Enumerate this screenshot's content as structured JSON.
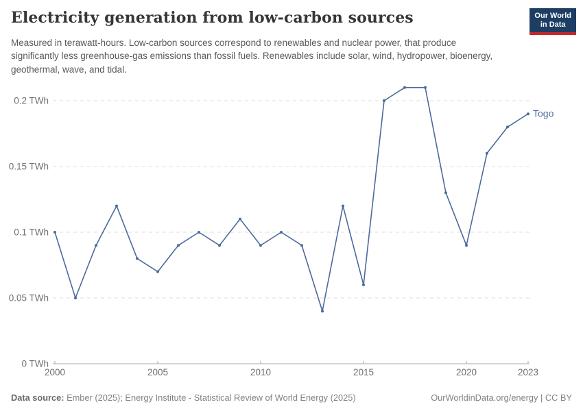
{
  "header": {
    "title": "Electricity generation from low-carbon sources",
    "subtitle": "Measured in terawatt-hours. Low-carbon sources correspond to renewables and nuclear power, that produce significantly less greenhouse-gas emissions than fossil fuels. Renewables include solar, wind, hydropower, bioenergy, geothermal, wave, and tidal.",
    "logo": {
      "line1": "Our World",
      "line2": "in Data",
      "bg_color": "#1d3d63",
      "accent_color": "#c5272d"
    }
  },
  "chart_data": {
    "type": "line",
    "title": "Electricity generation from low-carbon sources",
    "unit": "TWh",
    "x": [
      2000,
      2001,
      2002,
      2003,
      2004,
      2005,
      2006,
      2007,
      2008,
      2009,
      2010,
      2011,
      2012,
      2013,
      2014,
      2015,
      2016,
      2017,
      2018,
      2019,
      2020,
      2021,
      2022,
      2023
    ],
    "series": [
      {
        "name": "Togo",
        "color": "#4c6a9c",
        "values": [
          0.1,
          0.05,
          0.09,
          0.12,
          0.08,
          0.07,
          0.09,
          0.1,
          0.09,
          0.11,
          0.09,
          0.1,
          0.09,
          0.04,
          0.12,
          0.06,
          0.2,
          0.21,
          0.21,
          0.13,
          0.09,
          0.16,
          0.18,
          0.19
        ]
      }
    ],
    "xlim": [
      2000,
      2023
    ],
    "ylim": [
      0,
      0.21
    ],
    "xticks": [
      2000,
      2005,
      2010,
      2015,
      2020,
      2023
    ],
    "xtick_labels": [
      "2000",
      "2005",
      "2010",
      "2015",
      "2020",
      "2023"
    ],
    "yticks": [
      0,
      0.05,
      0.1,
      0.15,
      0.2
    ],
    "ytick_labels": [
      "0 TWh",
      "0.05 TWh",
      "0.1 TWh",
      "0.15 TWh",
      "0.2 TWh"
    ],
    "grid": "horizontal-dashed",
    "legend_position": "end-of-line-label",
    "colors": {
      "grid_line": "#dcdcdc",
      "axis_line": "#a8a8a8",
      "tick_label": "#6e6e6e"
    }
  },
  "footer": {
    "data_source_label": "Data source:",
    "data_source_text": " Ember (2025); Energy Institute - Statistical Review of World Energy (2025)",
    "attribution": "OurWorldinData.org/energy | CC BY"
  }
}
